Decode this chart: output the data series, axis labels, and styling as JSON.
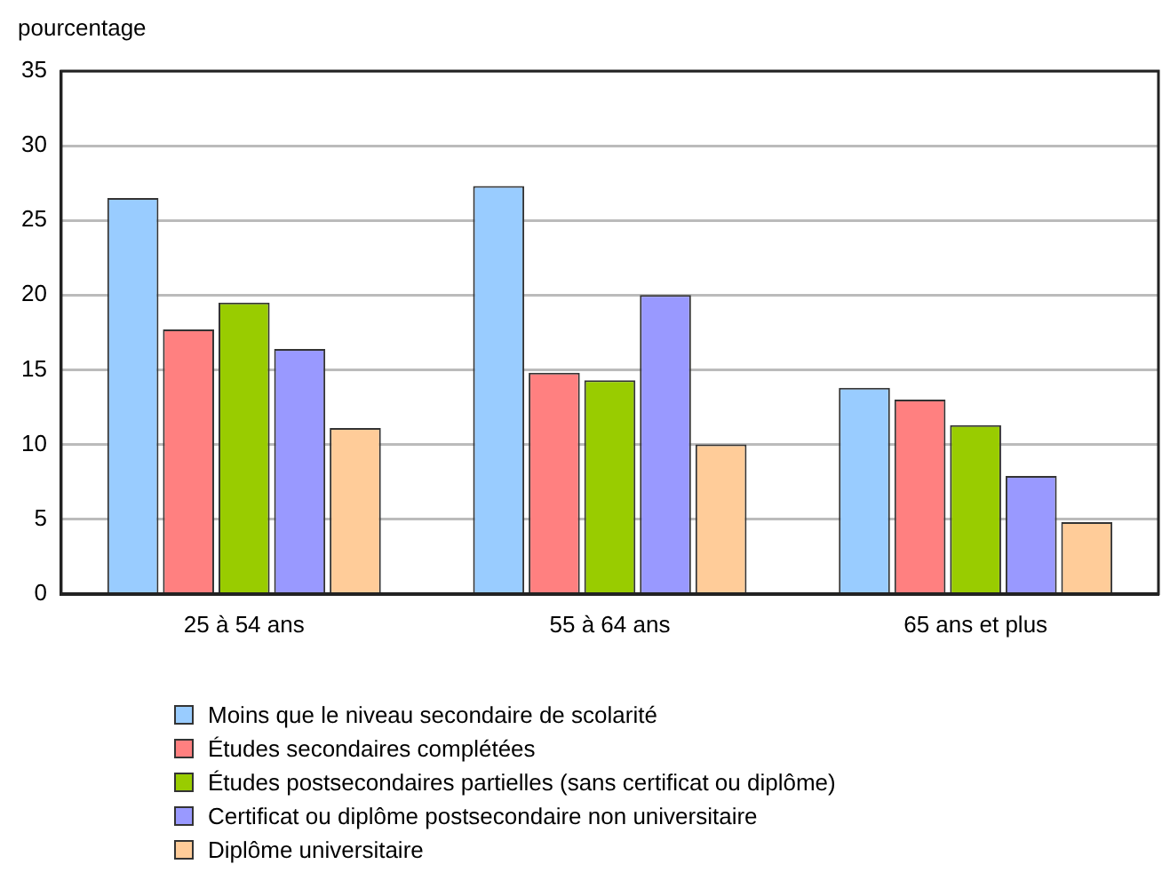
{
  "chart_data": {
    "type": "bar",
    "ylabel": "pourcentage",
    "categories": [
      "25 à 54 ans",
      "55 à 64 ans",
      "65 ans et plus"
    ],
    "series": [
      {
        "name": "Moins que le niveau secondaire de scolarité",
        "color": "#99ccff",
        "values": [
          26.5,
          27.3,
          13.8
        ]
      },
      {
        "name": "Études secondaires complétées",
        "color": "#ff8080",
        "values": [
          17.7,
          14.8,
          13.0
        ]
      },
      {
        "name": "Études postsecondaires partielles (sans certificat ou diplôme)",
        "color": "#99cc00",
        "values": [
          19.5,
          14.3,
          11.3
        ]
      },
      {
        "name": "Certificat ou diplôme postsecondaire non universitaire",
        "color": "#9999ff",
        "values": [
          16.4,
          20.0,
          7.9
        ]
      },
      {
        "name": "Diplôme universitaire",
        "color": "#ffcc99",
        "values": [
          11.1,
          10.0,
          4.8
        ]
      }
    ],
    "ylim": [
      0,
      35
    ],
    "yticks": [
      0,
      5,
      10,
      15,
      20,
      25,
      30,
      35
    ],
    "grid": "y",
    "legend": "bottom"
  }
}
